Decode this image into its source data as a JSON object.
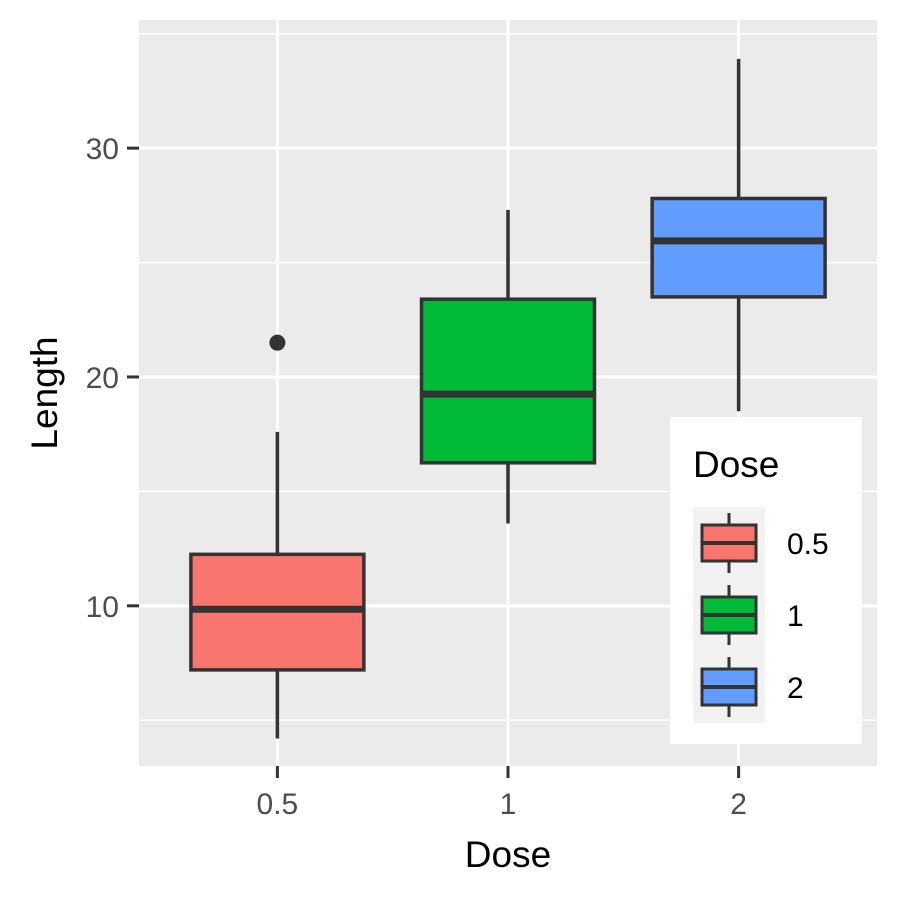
{
  "chart_data": {
    "type": "boxplot",
    "xlabel": "Dose",
    "ylabel": "Length",
    "categories": [
      "0.5",
      "1",
      "2"
    ],
    "ylim": [
      3,
      35.6
    ],
    "yticks": [
      10,
      20,
      30
    ],
    "boxes": [
      {
        "category": "0.5",
        "whisker_low": 4.2,
        "q1": 7.2,
        "median": 9.85,
        "q3": 12.25,
        "whisker_high": 17.6,
        "outliers": [
          21.5
        ],
        "color": "#F8766D"
      },
      {
        "category": "1",
        "whisker_low": 13.6,
        "q1": 16.25,
        "median": 19.25,
        "q3": 23.4,
        "whisker_high": 27.3,
        "outliers": [],
        "color": "#00BA38"
      },
      {
        "category": "2",
        "whisker_low": 18.5,
        "q1": 23.5,
        "median": 25.95,
        "q3": 27.8,
        "whisker_high": 33.9,
        "outliers": [],
        "color": "#619CFF"
      }
    ],
    "legend": {
      "title": "Dose",
      "position": "bottom-right inside",
      "entries": [
        {
          "label": "0.5",
          "color": "#F8766D"
        },
        {
          "label": "1",
          "color": "#00BA38"
        },
        {
          "label": "2",
          "color": "#619CFF"
        }
      ]
    },
    "grid": true,
    "panel_background": "#EBEBEB",
    "outline_color": "#333333"
  }
}
